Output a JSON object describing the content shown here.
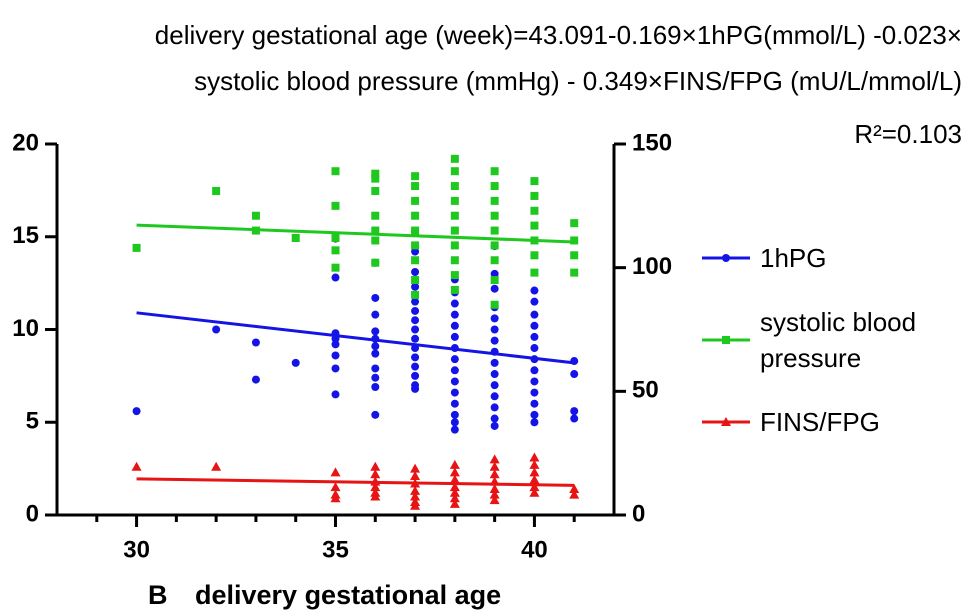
{
  "chart_data": {
    "type": "scatter",
    "title_lines": [
      "delivery gestational age (week)=43.091-0.169×1hPG(mmol/L) -0.023×",
      "systolic blood pressure (mmHg) - 0.349×FINS/FPG (mU/L/mmol/L)"
    ],
    "annotation": "R²=0.103",
    "panel_label": "B",
    "xlabel": "delivery gestational age",
    "xlim": [
      28,
      42
    ],
    "xticks": [
      30,
      35,
      40
    ],
    "xminor_ticks": [
      29,
      31,
      32,
      33,
      34,
      36,
      37,
      38,
      39,
      41
    ],
    "ylim": [
      0,
      20
    ],
    "yticks": [
      0,
      5,
      10,
      15,
      20
    ],
    "y2lim": [
      0,
      150
    ],
    "y2ticks": [
      0,
      50,
      100,
      150
    ],
    "series": [
      {
        "name": "1hPG",
        "color": "#1414e6",
        "marker": "circle",
        "axis": "y",
        "x": [
          30,
          32,
          33,
          33,
          34,
          35,
          35,
          35,
          35,
          35,
          35,
          35,
          35,
          36,
          36,
          36,
          36,
          36,
          36,
          36,
          36,
          36,
          36,
          36,
          37,
          37,
          37,
          37,
          37,
          37,
          37,
          37,
          37,
          37,
          37,
          37,
          37,
          37,
          37,
          38,
          38,
          38,
          38,
          38,
          38,
          38,
          38,
          38,
          38,
          38,
          38,
          38,
          38,
          38,
          39,
          39,
          39,
          39,
          39,
          39,
          39,
          39,
          39,
          39,
          39,
          39,
          39,
          39,
          39,
          40,
          40,
          40,
          40,
          40,
          40,
          40,
          40,
          40,
          40,
          40,
          40,
          40,
          41,
          41,
          41,
          41
        ],
        "values": [
          5.6,
          10.0,
          9.3,
          7.3,
          8.2,
          14.9,
          12.8,
          9.8,
          9.5,
          9.2,
          8.6,
          7.9,
          6.5,
          13.6,
          11.7,
          10.8,
          9.9,
          9.5,
          9.1,
          8.7,
          7.9,
          7.4,
          6.9,
          5.4,
          15.3,
          14.2,
          13.1,
          12.3,
          11.5,
          11.0,
          10.5,
          10.0,
          9.5,
          9.0,
          8.5,
          8.0,
          7.5,
          7.0,
          6.8,
          12.7,
          12.0,
          11.4,
          10.8,
          10.2,
          9.6,
          9.0,
          8.4,
          7.8,
          7.2,
          6.6,
          6.0,
          5.4,
          5.0,
          4.6,
          14.5,
          13.0,
          12.2,
          11.2,
          10.6,
          10.0,
          9.4,
          8.8,
          8.2,
          7.6,
          7.0,
          6.4,
          5.8,
          5.2,
          4.8,
          12.1,
          11.5,
          10.8,
          10.2,
          9.6,
          9.0,
          8.4,
          7.8,
          7.2,
          6.6,
          6.0,
          5.4,
          5.0,
          8.3,
          7.6,
          5.6,
          5.2
        ]
      },
      {
        "name": "systolic blood pressure",
        "color": "#1ec81e",
        "marker": "square",
        "axis": "y2",
        "x": [
          30,
          32,
          33,
          33,
          34,
          35,
          35,
          35,
          35,
          35,
          36,
          36,
          36,
          36,
          36,
          36,
          36,
          37,
          37,
          37,
          37,
          37,
          37,
          37,
          37,
          37,
          38,
          38,
          38,
          38,
          38,
          38,
          38,
          38,
          38,
          38,
          39,
          39,
          39,
          39,
          39,
          39,
          39,
          39,
          39,
          40,
          40,
          40,
          40,
          40,
          40,
          40,
          41,
          41,
          41,
          41
        ],
        "values": [
          108,
          131,
          121,
          115,
          112,
          139,
          125,
          112,
          107,
          100,
          138,
          136,
          131,
          121,
          115,
          111,
          102,
          137,
          133,
          127,
          121,
          115,
          109,
          103,
          95,
          89,
          144,
          139,
          133,
          127,
          121,
          115,
          109,
          103,
          97,
          91,
          139,
          133,
          127,
          121,
          115,
          109,
          103,
          95,
          85,
          135,
          129,
          123,
          117,
          111,
          105,
          98,
          118,
          111,
          105,
          98
        ]
      },
      {
        "name": "FINS/FPG",
        "color": "#e61414",
        "marker": "triangle",
        "axis": "y",
        "x": [
          30,
          32,
          35,
          35,
          35,
          35,
          36,
          36,
          36,
          36,
          36,
          36,
          37,
          37,
          37,
          37,
          37,
          37,
          37,
          38,
          38,
          38,
          38,
          38,
          38,
          38,
          39,
          39,
          39,
          39,
          39,
          39,
          39,
          40,
          40,
          40,
          40,
          40,
          40,
          41,
          41
        ],
        "values": [
          2.6,
          2.6,
          2.3,
          1.5,
          1.1,
          0.9,
          2.6,
          2.2,
          1.8,
          1.5,
          1.2,
          1.0,
          2.5,
          2.1,
          1.7,
          1.3,
          1.0,
          0.7,
          0.5,
          2.7,
          2.3,
          1.9,
          1.5,
          1.2,
          0.9,
          0.6,
          3.0,
          2.6,
          2.2,
          1.8,
          1.4,
          1.1,
          0.8,
          3.1,
          2.7,
          2.3,
          1.9,
          1.5,
          1.2,
          1.4,
          1.1
        ]
      }
    ],
    "fit_lines": [
      {
        "color": "#1414e6",
        "axis": "y",
        "x": [
          30,
          41
        ],
        "values": [
          10.9,
          8.2
        ]
      },
      {
        "color": "#1ec81e",
        "axis": "y2",
        "x": [
          30,
          41
        ],
        "values": [
          117.2,
          110.4
        ]
      },
      {
        "color": "#e61414",
        "axis": "y",
        "x": [
          30,
          41
        ],
        "values": [
          1.95,
          1.6
        ]
      }
    ]
  }
}
